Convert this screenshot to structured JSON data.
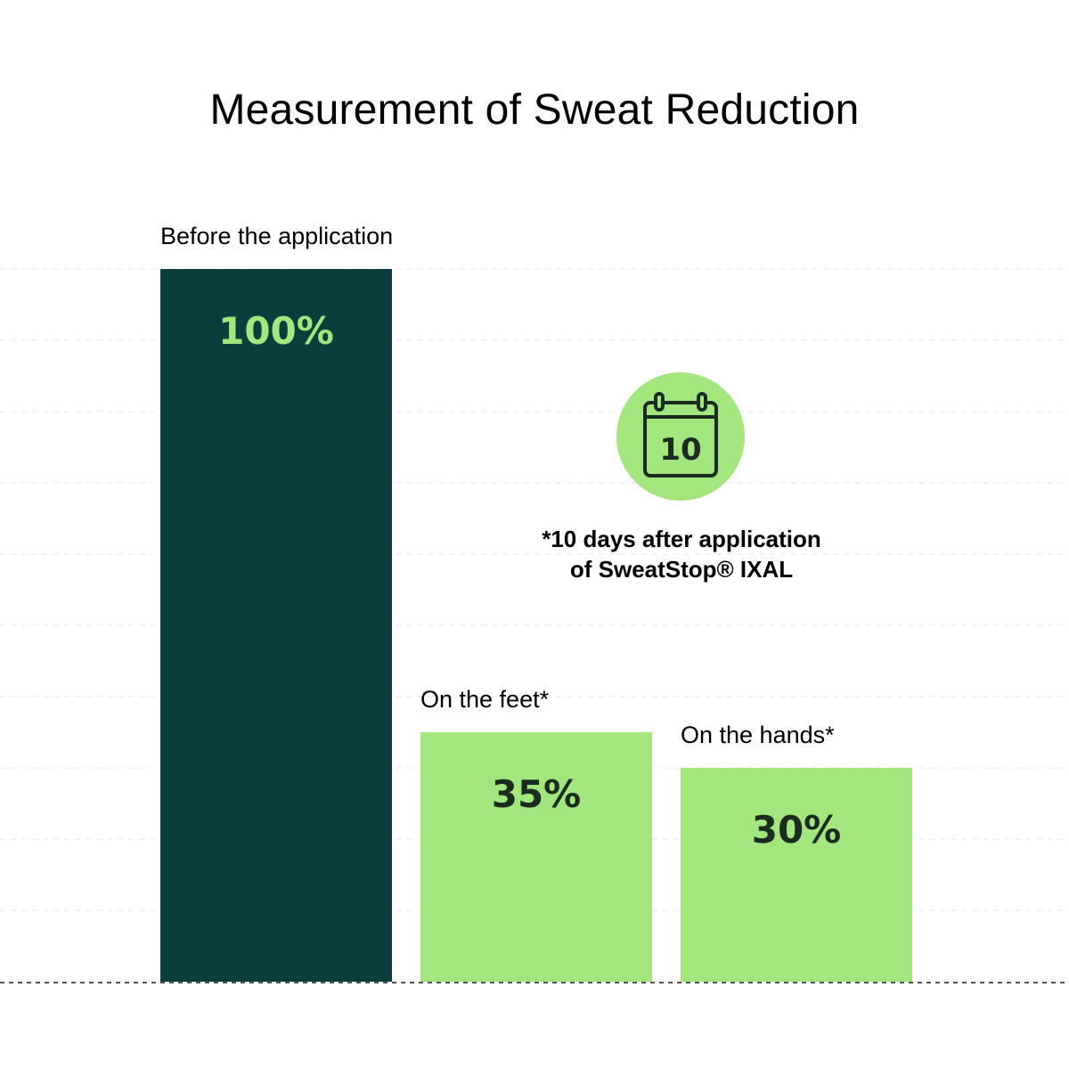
{
  "chart_data": {
    "type": "bar",
    "title": "Measurement of Sweat Reduction",
    "categories": [
      "Before the application",
      "On the feet*",
      "On the hands*"
    ],
    "values": [
      100,
      35,
      30
    ],
    "value_labels": [
      "100%",
      "35%",
      "30%"
    ],
    "ylim": [
      0,
      100
    ],
    "grid": true,
    "xlabel": "",
    "ylabel": "",
    "bar_colors": [
      "#0a3e3c",
      "#a3e67d",
      "#a3e67d"
    ],
    "value_label_colors": [
      "#a3e67d",
      "#1b2b22",
      "#1b2b22"
    ],
    "annotation": {
      "icon": "calendar-icon",
      "icon_number": "10",
      "lines": [
        "*10 days after application",
        "of SweatStop® IXAL"
      ]
    }
  },
  "colors": {
    "background": "#ffffff",
    "dark_green": "#0a3e3c",
    "light_green": "#a3e67d",
    "text_dark": "#1b2b22"
  }
}
